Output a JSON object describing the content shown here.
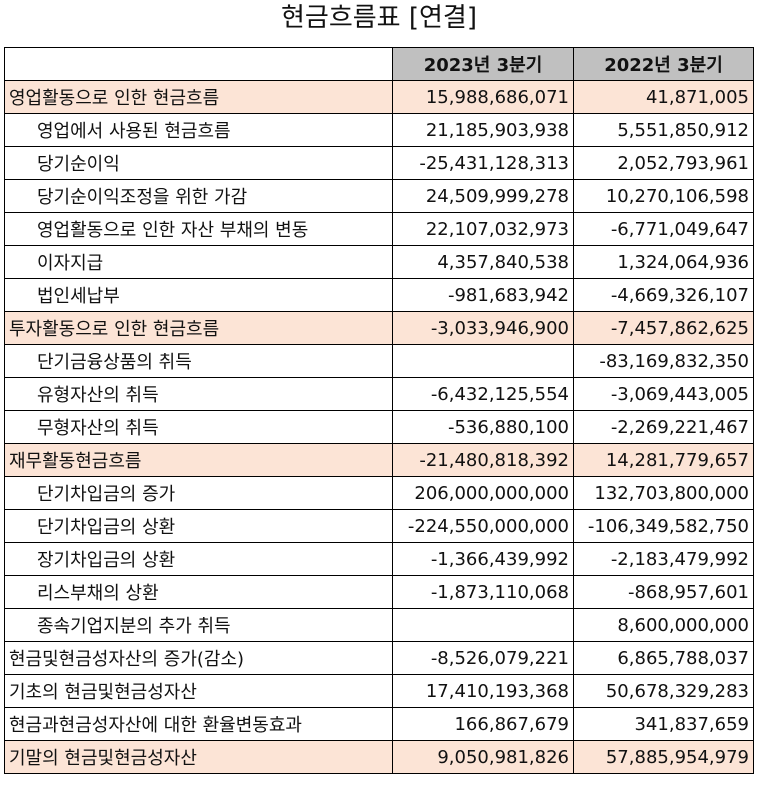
{
  "title": "현금흐름표 [연결]",
  "table": {
    "columns": [
      "",
      "2023년 3분기",
      "2022년 3분기"
    ],
    "header_bg": "#c0c0c0",
    "highlight_bg": "#fce4d6",
    "rows": [
      {
        "label": "영업활동으로 인한 현금흐름",
        "v2023": "15,988,686,071",
        "v2022": "41,871,005",
        "highlight": true,
        "indent": false
      },
      {
        "label": "영업에서 사용된 현금흐름",
        "v2023": "21,185,903,938",
        "v2022": "5,551,850,912",
        "highlight": false,
        "indent": true
      },
      {
        "label": "당기순이익",
        "v2023": "-25,431,128,313",
        "v2022": "2,052,793,961",
        "highlight": false,
        "indent": true
      },
      {
        "label": "당기순이익조정을 위한 가감",
        "v2023": "24,509,999,278",
        "v2022": "10,270,106,598",
        "highlight": false,
        "indent": true
      },
      {
        "label": "영업활동으로 인한 자산 부채의 변동",
        "v2023": "22,107,032,973",
        "v2022": "-6,771,049,647",
        "highlight": false,
        "indent": true
      },
      {
        "label": "이자지급",
        "v2023": "4,357,840,538",
        "v2022": "1,324,064,936",
        "highlight": false,
        "indent": true
      },
      {
        "label": "법인세납부",
        "v2023": "-981,683,942",
        "v2022": "-4,669,326,107",
        "highlight": false,
        "indent": true
      },
      {
        "label": "투자활동으로 인한 현금흐름",
        "v2023": "-3,033,946,900",
        "v2022": "-7,457,862,625",
        "highlight": true,
        "indent": false
      },
      {
        "label": "단기금융상품의 취득",
        "v2023": "",
        "v2022": "-83,169,832,350",
        "highlight": false,
        "indent": true
      },
      {
        "label": "유형자산의 취득",
        "v2023": "-6,432,125,554",
        "v2022": "-3,069,443,005",
        "highlight": false,
        "indent": true
      },
      {
        "label": "무형자산의 취득",
        "v2023": "-536,880,100",
        "v2022": "-2,269,221,467",
        "highlight": false,
        "indent": true
      },
      {
        "label": "재무활동현금흐름",
        "v2023": "-21,480,818,392",
        "v2022": "14,281,779,657",
        "highlight": true,
        "indent": false
      },
      {
        "label": "단기차입금의 증가",
        "v2023": "206,000,000,000",
        "v2022": "132,703,800,000",
        "highlight": false,
        "indent": true
      },
      {
        "label": "단기차입금의 상환",
        "v2023": "-224,550,000,000",
        "v2022": "-106,349,582,750",
        "highlight": false,
        "indent": true
      },
      {
        "label": "장기차입금의 상환",
        "v2023": "-1,366,439,992",
        "v2022": "-2,183,479,992",
        "highlight": false,
        "indent": true
      },
      {
        "label": "리스부채의 상환",
        "v2023": "-1,873,110,068",
        "v2022": "-868,957,601",
        "highlight": false,
        "indent": true
      },
      {
        "label": "종속기업지분의 추가 취득",
        "v2023": "",
        "v2022": "8,600,000,000",
        "highlight": false,
        "indent": true
      },
      {
        "label": "현금및현금성자산의 증가(감소)",
        "v2023": "-8,526,079,221",
        "v2022": "6,865,788,037",
        "highlight": false,
        "indent": false
      },
      {
        "label": "기초의 현금및현금성자산",
        "v2023": "17,410,193,368",
        "v2022": "50,678,329,283",
        "highlight": false,
        "indent": false
      },
      {
        "label": "현금과현금성자산에 대한 환율변동효과",
        "v2023": "166,867,679",
        "v2022": "341,837,659",
        "highlight": false,
        "indent": false
      },
      {
        "label": "기말의 현금및현금성자산",
        "v2023": "9,050,981,826",
        "v2022": "57,885,954,979",
        "highlight": true,
        "indent": false
      }
    ]
  }
}
